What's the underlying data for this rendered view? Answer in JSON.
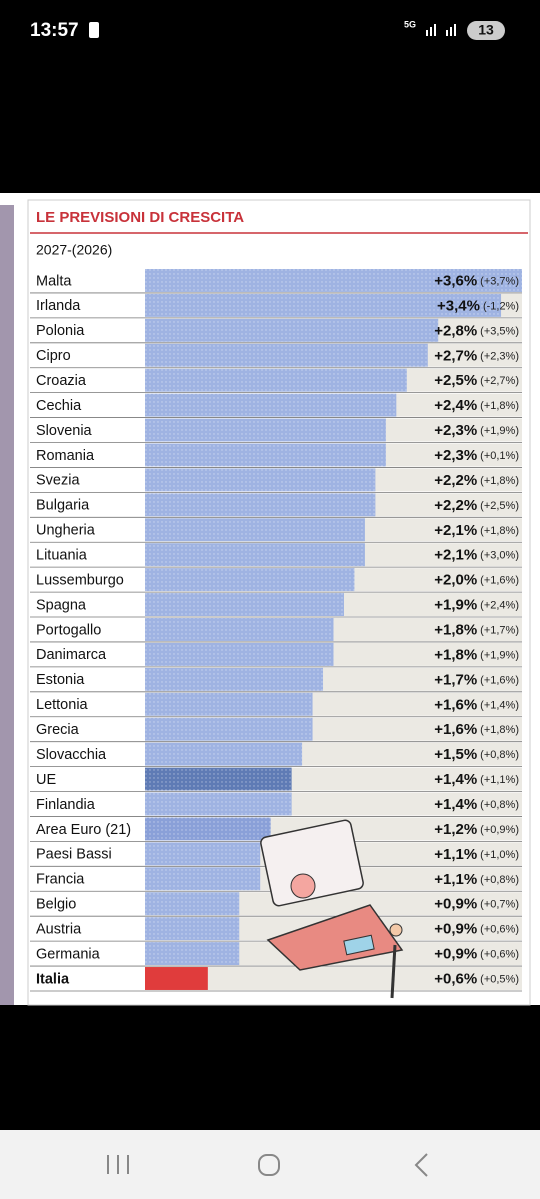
{
  "status_bar": {
    "time": "13:57",
    "network": "5G",
    "battery": "13"
  },
  "chart_data": {
    "type": "bar",
    "orientation": "horizontal",
    "title": "LE PREVISIONI DI CRESCITA",
    "subtitle": "2027-(2026)",
    "categories": [
      "Malta",
      "Irlanda",
      "Polonia",
      "Cipro",
      "Croazia",
      "Cechia",
      "Slovenia",
      "Romania",
      "Svezia",
      "Bulgaria",
      "Ungheria",
      "Lituania",
      "Lussemburgo",
      "Spagna",
      "Portogallo",
      "Danimarca",
      "Estonia",
      "Lettonia",
      "Grecia",
      "Slovacchia",
      "UE",
      "Finlandia",
      "Area Euro (21)",
      "Paesi Bassi",
      "Francia",
      "Belgio",
      "Austria",
      "Germania",
      "Italia"
    ],
    "values": [
      3.6,
      3.4,
      2.8,
      2.7,
      2.5,
      2.4,
      2.3,
      2.3,
      2.2,
      2.2,
      2.1,
      2.1,
      2.0,
      1.9,
      1.8,
      1.8,
      1.7,
      1.6,
      1.6,
      1.5,
      1.4,
      1.4,
      1.2,
      1.1,
      1.1,
      0.9,
      0.9,
      0.9,
      0.6
    ],
    "value_labels": [
      "+3,6%",
      "+3,4%",
      "+2,8%",
      "+2,7%",
      "+2,5%",
      "+2,4%",
      "+2,3%",
      "+2,3%",
      "+2,2%",
      "+2,2%",
      "+2,1%",
      "+2,1%",
      "+2,0%",
      "+1,9%",
      "+1,8%",
      "+1,8%",
      "+1,7%",
      "+1,6%",
      "+1,6%",
      "+1,5%",
      "+1,4%",
      "+1,4%",
      "+1,2%",
      "+1,1%",
      "+1,1%",
      "+0,9%",
      "+0,9%",
      "+0,9%",
      "+0,6%"
    ],
    "prior_values": [
      3.7,
      -1.2,
      3.5,
      2.3,
      2.7,
      1.8,
      1.9,
      0.1,
      1.8,
      2.5,
      1.8,
      3.0,
      1.6,
      2.4,
      1.7,
      1.9,
      1.6,
      1.4,
      1.8,
      0.8,
      1.1,
      0.8,
      0.9,
      1.0,
      0.8,
      0.7,
      0.6,
      0.6,
      0.5
    ],
    "prior_value_labels": [
      "(+3,7%)",
      "(-1,2%)",
      "(+3,5%)",
      "(+2,3%)",
      "(+2,7%)",
      "(+1,8%)",
      "(+1,9%)",
      "(+0,1%)",
      "(+1,8%)",
      "(+2,5%)",
      "(+1,8%)",
      "(+3,0%)",
      "(+1,6%)",
      "(+2,4%)",
      "(+1,7%)",
      "(+1,9%)",
      "(+1,6%)",
      "(+1,4%)",
      "(+1,8%)",
      "(+0,8%)",
      "(+1,1%)",
      "(+0,8%)",
      "(+0,9%)",
      "(+1,0%)",
      "(+0,8%)",
      "(+0,7%)",
      "(+0,6%)",
      "(+0,6%)",
      "(+0,5%)"
    ],
    "colors": [
      "#9fb3e2",
      "#9fb3e2",
      "#9fb3e2",
      "#9fb3e2",
      "#9fb3e2",
      "#9fb3e2",
      "#9fb3e2",
      "#9fb3e2",
      "#9fb3e2",
      "#9fb3e2",
      "#9fb3e2",
      "#9fb3e2",
      "#9fb3e2",
      "#9fb3e2",
      "#9fb3e2",
      "#9fb3e2",
      "#9fb3e2",
      "#9fb3e2",
      "#9fb3e2",
      "#9fb3e2",
      "#5f7bb5",
      "#9fb3e2",
      "#8aa0d8",
      "#9fb3e2",
      "#9fb3e2",
      "#9fb3e2",
      "#9fb3e2",
      "#9fb3e2",
      "#e03c3c"
    ],
    "xlim": [
      0,
      3.6
    ]
  }
}
